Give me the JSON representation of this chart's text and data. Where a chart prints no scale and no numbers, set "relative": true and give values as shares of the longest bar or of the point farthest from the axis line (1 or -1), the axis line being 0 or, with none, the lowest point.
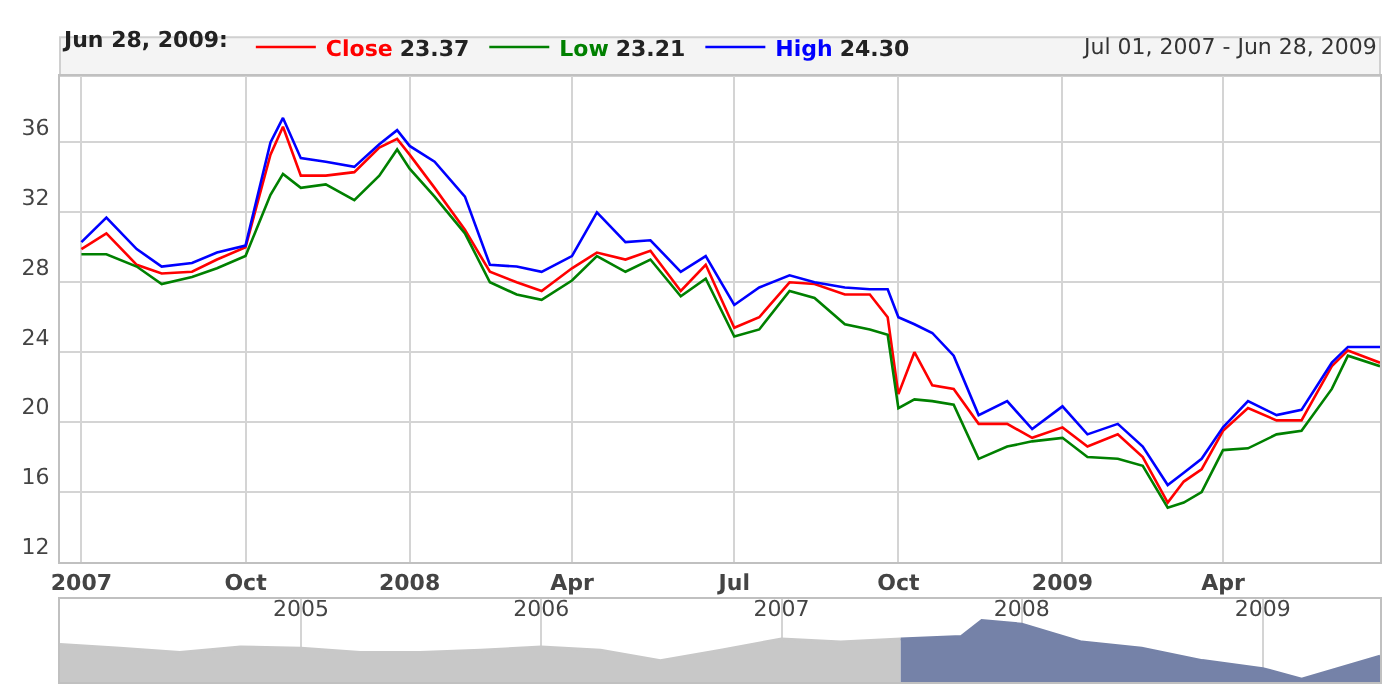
{
  "chart_data": [
    {
      "type": "line",
      "legend_title": "Jun 28, 2009:",
      "legend": "top left",
      "grid": true,
      "marker": "none",
      "line_style": "solid",
      "annotations": [
        "Jul 01, 2007 - Jun 28, 2009"
      ],
      "x": [
        "2007-07-01",
        "2007-07-15",
        "2007-08-01",
        "2007-08-15",
        "2007-09-01",
        "2007-09-15",
        "2007-10-01",
        "2007-10-15",
        "2007-10-22",
        "2007-11-01",
        "2007-11-15",
        "2007-12-01",
        "2007-12-15",
        "2007-12-25",
        "2008-01-01",
        "2008-01-15",
        "2008-02-01",
        "2008-02-15",
        "2008-03-01",
        "2008-03-15",
        "2008-04-01",
        "2008-04-15",
        "2008-05-01",
        "2008-05-15",
        "2008-06-01",
        "2008-06-15",
        "2008-07-01",
        "2008-07-15",
        "2008-08-01",
        "2008-08-15",
        "2008-09-01",
        "2008-09-15",
        "2008-09-25",
        "2008-10-01",
        "2008-10-10",
        "2008-10-20",
        "2008-11-01",
        "2008-11-15",
        "2008-12-01",
        "2008-12-15",
        "2009-01-01",
        "2009-01-15",
        "2009-02-01",
        "2009-02-15",
        "2009-03-01",
        "2009-03-10",
        "2009-03-20",
        "2009-04-01",
        "2009-04-15",
        "2009-05-01",
        "2009-05-15",
        "2009-06-01",
        "2009-06-10",
        "2009-06-28"
      ],
      "series": [
        {
          "name": "Close 23.37",
          "color": "#ff0000",
          "values": [
            29.9,
            30.8,
            29.0,
            28.5,
            28.6,
            29.3,
            30.0,
            35.3,
            36.9,
            34.1,
            34.1,
            34.3,
            35.7,
            36.2,
            35.3,
            33.4,
            31.0,
            28.6,
            28.0,
            27.5,
            28.8,
            29.7,
            29.3,
            29.8,
            27.5,
            29.0,
            25.4,
            26.0,
            28.0,
            27.9,
            27.3,
            27.3,
            26.0,
            21.6,
            24.0,
            22.1,
            21.9,
            19.9,
            19.9,
            19.1,
            19.7,
            18.6,
            19.3,
            18.0,
            15.4,
            16.6,
            17.3,
            19.5,
            20.8,
            20.1,
            20.1,
            23.2,
            24.1,
            23.4
          ]
        },
        {
          "name": "Low 23.21",
          "color": "#008000",
          "values": [
            29.6,
            29.6,
            28.9,
            27.9,
            28.3,
            28.8,
            29.5,
            33.0,
            34.2,
            33.4,
            33.6,
            32.7,
            34.1,
            35.6,
            34.5,
            32.9,
            30.8,
            28.0,
            27.3,
            27.0,
            28.1,
            29.5,
            28.6,
            29.3,
            27.2,
            28.2,
            24.9,
            25.3,
            27.5,
            27.1,
            25.6,
            25.3,
            25.0,
            20.8,
            21.3,
            21.2,
            21.0,
            17.9,
            18.6,
            18.9,
            19.1,
            18.0,
            17.9,
            17.5,
            15.1,
            15.4,
            16.0,
            18.4,
            18.5,
            19.3,
            19.5,
            21.9,
            23.8,
            23.2
          ]
        },
        {
          "name": "High 24.30",
          "color": "#0000ff",
          "values": [
            30.3,
            31.7,
            29.9,
            28.9,
            29.1,
            29.7,
            30.1,
            36.0,
            37.4,
            35.1,
            34.9,
            34.6,
            35.9,
            36.7,
            35.8,
            34.9,
            32.9,
            29.0,
            28.9,
            28.6,
            29.5,
            32.0,
            30.3,
            30.4,
            28.6,
            29.5,
            26.7,
            27.7,
            28.4,
            28.0,
            27.7,
            27.6,
            27.6,
            26.0,
            25.6,
            25.1,
            23.8,
            20.4,
            21.2,
            19.6,
            20.9,
            19.3,
            19.9,
            18.6,
            16.4,
            17.1,
            17.9,
            19.7,
            21.2,
            20.4,
            20.7,
            23.4,
            24.3,
            24.3
          ]
        }
      ],
      "xlim": [
        "2007-06-19",
        "2009-06-28"
      ],
      "xticks": [
        {
          "value": "2007-07-01",
          "label": "2007"
        },
        {
          "value": "2007-10-01",
          "label": "Oct"
        },
        {
          "value": "2008-01-01",
          "label": "2008"
        },
        {
          "value": "2008-04-01",
          "label": "Apr"
        },
        {
          "value": "2008-07-01",
          "label": "Jul"
        },
        {
          "value": "2008-10-01",
          "label": "Oct"
        },
        {
          "value": "2009-01-01",
          "label": "2009"
        },
        {
          "value": "2009-04-01",
          "label": "Apr"
        }
      ],
      "ylim": [
        12,
        39.8
      ],
      "yticks": [
        12,
        16,
        20,
        24,
        28,
        32,
        36
      ]
    },
    {
      "type": "area",
      "relative": true,
      "grid": "x",
      "xlim": [
        "2004-01-01",
        "2009-06-28"
      ],
      "xticks": [
        {
          "value": "2005-01-01",
          "label": "2005"
        },
        {
          "value": "2006-01-01",
          "label": "2006"
        },
        {
          "value": "2007-01-01",
          "label": "2007"
        },
        {
          "value": "2008-01-01",
          "label": "2008"
        },
        {
          "value": "2009-01-01",
          "label": "2009"
        }
      ],
      "series": [
        {
          "color": "#c8c8c8",
          "x": [
            "2004-01-01",
            "2004-04-01",
            "2004-07-01",
            "2004-10-01",
            "2005-01-01",
            "2005-04-01",
            "2005-07-01",
            "2005-10-01",
            "2006-01-01",
            "2006-04-01",
            "2006-07-01",
            "2006-10-01",
            "2007-01-01",
            "2007-04-01",
            "2007-07-01"
          ],
          "values": [
            0.61,
            0.55,
            0.48,
            0.57,
            0.55,
            0.48,
            0.48,
            0.52,
            0.57,
            0.52,
            0.35,
            0.52,
            0.7,
            0.65,
            0.7
          ]
        },
        {
          "color": "#7582a8",
          "x": [
            "2007-07-01",
            "2007-10-01",
            "2007-11-01",
            "2008-01-01",
            "2008-04-01",
            "2008-07-01",
            "2008-10-01",
            "2009-01-01",
            "2009-03-01",
            "2009-06-28"
          ],
          "values": [
            0.7,
            0.74,
            1.0,
            0.94,
            0.65,
            0.55,
            0.35,
            0.22,
            0.05,
            0.42
          ]
        }
      ]
    }
  ]
}
